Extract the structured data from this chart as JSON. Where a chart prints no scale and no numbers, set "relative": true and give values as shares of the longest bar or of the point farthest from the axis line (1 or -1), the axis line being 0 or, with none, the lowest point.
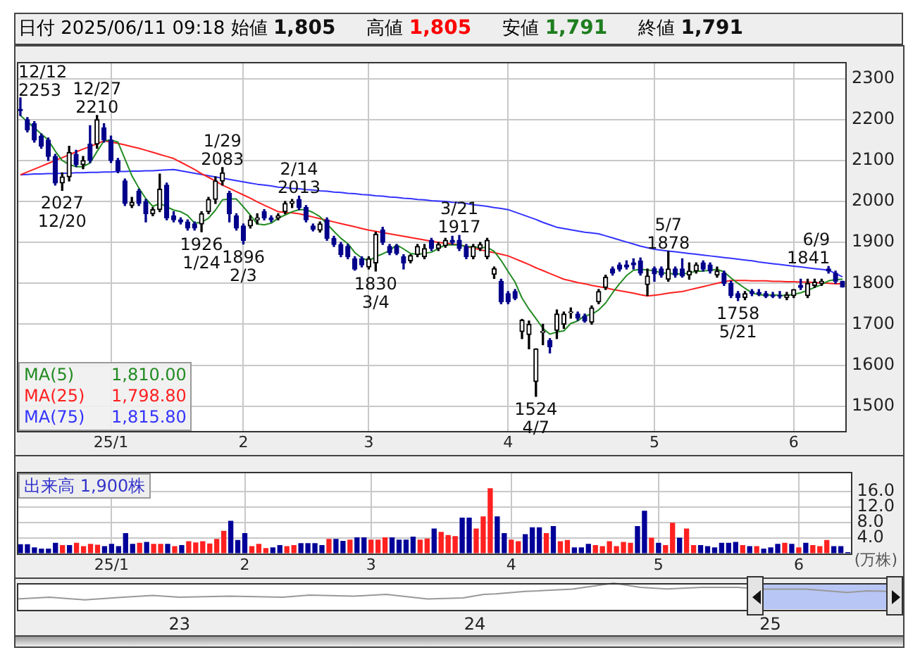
{
  "chart_data": [
    {
      "type": "candlestick",
      "title": "日付 2025/06/11 09:18",
      "annotations": [
        "始値 1,805",
        "高値 1,805",
        "安値 1,791",
        "終値 1,791",
        {
          "text": "12/27\n2210",
          "y": 2210
        },
        {
          "text": "2027\n12/20",
          "y": 2027
        },
        {
          "text": "1926\n1/24",
          "y": 1926
        },
        {
          "text": "1/29\n2083",
          "y": 2083
        },
        {
          "text": "1896\n2/3",
          "y": 1896
        },
        {
          "text": "2/14\n2013",
          "y": 2013
        },
        {
          "text": "1830\n3/4",
          "y": 1830
        },
        {
          "text": "3/21\n1917",
          "y": 1917
        },
        {
          "text": "1524\n4/7",
          "y": 1524
        },
        {
          "text": "5/7\n1878",
          "y": 1878
        },
        {
          "text": "1758\n5/21",
          "y": 1758
        },
        {
          "text": "6/9\n1841",
          "y": 1841
        },
        "12/12\n2253"
      ],
      "categories": [
        null,
        null,
        null,
        null,
        null,
        null,
        null,
        null,
        null,
        null,
        null,
        null,
        null,
        "25/1",
        null,
        null,
        null,
        null,
        null,
        null,
        null,
        null,
        null,
        null,
        null,
        null,
        null,
        null,
        null,
        null,
        null,
        null,
        "2",
        null,
        null,
        null,
        null,
        null,
        null,
        null,
        null,
        null,
        null,
        null,
        null,
        null,
        null,
        null,
        null,
        null,
        "3",
        null,
        null,
        null,
        null,
        null,
        null,
        null,
        null,
        null,
        null,
        null,
        null,
        null,
        null,
        null,
        null,
        null,
        null,
        null,
        "4",
        null,
        null,
        null,
        null,
        null,
        null,
        null,
        null,
        null,
        null,
        null,
        null,
        null,
        null,
        null,
        null,
        null,
        null,
        null,
        null,
        "5",
        null,
        null,
        null,
        null,
        null,
        null,
        null,
        null,
        null,
        null,
        null,
        null,
        null,
        null,
        null,
        null,
        null,
        null,
        null,
        "6",
        null,
        null,
        null,
        null,
        null,
        null,
        null
      ],
      "ohlc": [
        [
          2225,
          2253,
          2210,
          2222
        ],
        [
          2200,
          2205,
          2170,
          2175
        ],
        [
          2190,
          2195,
          2145,
          2150
        ],
        [
          2160,
          2165,
          2130,
          2135
        ],
        [
          2150,
          2155,
          2100,
          2110
        ],
        [
          2110,
          2115,
          2040,
          2045
        ],
        [
          2045,
          2070,
          2027,
          2060
        ],
        [
          2060,
          2135,
          2050,
          2120
        ],
        [
          2115,
          2125,
          2085,
          2090
        ],
        [
          2090,
          2110,
          2080,
          2100
        ],
        [
          2140,
          2185,
          2095,
          2100
        ],
        [
          2140,
          2210,
          2130,
          2200
        ],
        [
          2180,
          2190,
          2145,
          2150
        ],
        [
          2150,
          2160,
          2095,
          2100
        ],
        [
          2100,
          2105,
          2070,
          2075
        ],
        [
          2050,
          2055,
          1990,
          1995
        ],
        [
          1990,
          2010,
          1985,
          1998
        ],
        [
          2025,
          2030,
          1990,
          1995
        ],
        [
          2000,
          2005,
          1950,
          1970
        ],
        [
          1970,
          1985,
          1965,
          1980
        ],
        [
          1980,
          2067,
          1975,
          2030
        ],
        [
          2040,
          2045,
          1955,
          1960
        ],
        [
          1965,
          1975,
          1950,
          1955
        ],
        [
          1955,
          1960,
          1945,
          1950
        ],
        [
          1950,
          1955,
          1930,
          1935
        ],
        [
          1945,
          1950,
          1930,
          1935
        ],
        [
          1945,
          1975,
          1926,
          1970
        ],
        [
          1975,
          2010,
          1970,
          2005
        ],
        [
          2005,
          2060,
          1995,
          2050
        ],
        [
          2050,
          2083,
          2040,
          2070
        ],
        [
          2020,
          2025,
          1950,
          1970
        ],
        [
          1965,
          1970,
          1930,
          1935
        ],
        [
          1940,
          1945,
          1896,
          1905
        ],
        [
          1940,
          1965,
          1935,
          1955
        ],
        [
          1955,
          1970,
          1945,
          1960
        ],
        [
          1975,
          1980,
          1955,
          1960
        ],
        [
          1960,
          1965,
          1950,
          1955
        ],
        [
          1960,
          1970,
          1955,
          1965
        ],
        [
          1975,
          2000,
          1970,
          1995
        ],
        [
          1995,
          2005,
          1985,
          2000
        ],
        [
          2005,
          2013,
          1980,
          1985
        ],
        [
          1985,
          1990,
          1950,
          1955
        ],
        [
          1940,
          1945,
          1928,
          1932
        ],
        [
          1930,
          1950,
          1925,
          1945
        ],
        [
          1955,
          1960,
          1905,
          1910
        ],
        [
          1910,
          1915,
          1890,
          1895
        ],
        [
          1895,
          1900,
          1865,
          1870
        ],
        [
          1890,
          1895,
          1860,
          1865
        ],
        [
          1860,
          1865,
          1832,
          1835
        ],
        [
          1860,
          1865,
          1840,
          1845
        ],
        [
          1840,
          1865,
          1835,
          1860
        ],
        [
          1850,
          1925,
          1830,
          1920
        ],
        [
          1930,
          1937,
          1895,
          1900
        ],
        [
          1890,
          1895,
          1870,
          1875
        ],
        [
          1890,
          1895,
          1870,
          1873
        ],
        [
          1865,
          1870,
          1835,
          1850
        ],
        [
          1855,
          1870,
          1850,
          1868
        ],
        [
          1870,
          1895,
          1865,
          1890
        ],
        [
          1865,
          1895,
          1860,
          1885
        ],
        [
          1905,
          1910,
          1880,
          1885
        ],
        [
          1885,
          1900,
          1880,
          1895
        ],
        [
          1892,
          1910,
          1888,
          1905
        ],
        [
          1905,
          1915,
          1895,
          1900
        ],
        [
          1905,
          1917,
          1880,
          1885
        ],
        [
          1890,
          1895,
          1860,
          1865
        ],
        [
          1865,
          1895,
          1860,
          1890
        ],
        [
          1885,
          1900,
          1880,
          1895
        ],
        [
          1865,
          1910,
          1860,
          1905
        ],
        [
          1822,
          1840,
          1812,
          1836
        ],
        [
          1805,
          1810,
          1750,
          1755
        ],
        [
          1775,
          1780,
          1750,
          1755
        ],
        [
          1780,
          1785,
          1760,
          1764
        ],
        [
          1682,
          1712,
          1665,
          1710
        ],
        [
          1675,
          1708,
          1640,
          1700
        ],
        [
          1560,
          1640,
          1524,
          1640
        ],
        [
          1680,
          1700,
          1650,
          1683
        ],
        [
          1660,
          1665,
          1630,
          1645
        ],
        [
          1685,
          1735,
          1665,
          1725
        ],
        [
          1700,
          1730,
          1690,
          1725
        ],
        [
          1728,
          1740,
          1715,
          1730
        ],
        [
          1725,
          1730,
          1710,
          1715
        ],
        [
          1720,
          1725,
          1705,
          1708
        ],
        [
          1705,
          1745,
          1700,
          1740
        ],
        [
          1755,
          1785,
          1750,
          1780
        ],
        [
          1790,
          1820,
          1785,
          1815
        ],
        [
          1835,
          1840,
          1820,
          1825
        ],
        [
          1845,
          1850,
          1830,
          1835
        ],
        [
          1845,
          1855,
          1835,
          1840
        ],
        [
          1850,
          1860,
          1835,
          1845
        ],
        [
          1855,
          1862,
          1820,
          1825
        ],
        [
          1797,
          1835,
          1770,
          1818
        ],
        [
          1836,
          1840,
          1805,
          1823
        ],
        [
          1835,
          1840,
          1815,
          1820
        ],
        [
          1810,
          1878,
          1805,
          1835
        ],
        [
          1835,
          1840,
          1815,
          1820
        ],
        [
          1835,
          1860,
          1815,
          1818
        ],
        [
          1820,
          1850,
          1810,
          1830
        ],
        [
          1830,
          1850,
          1825,
          1845
        ],
        [
          1850,
          1855,
          1830,
          1835
        ],
        [
          1845,
          1850,
          1825,
          1830
        ],
        [
          1820,
          1840,
          1815,
          1830
        ],
        [
          1825,
          1830,
          1795,
          1800
        ],
        [
          1800,
          1805,
          1765,
          1770
        ],
        [
          1775,
          1780,
          1758,
          1765
        ],
        [
          1765,
          1780,
          1760,
          1775
        ],
        [
          1780,
          1785,
          1770,
          1775
        ],
        [
          1778,
          1785,
          1770,
          1774
        ],
        [
          1775,
          1780,
          1765,
          1768
        ],
        [
          1770,
          1778,
          1765,
          1768
        ],
        [
          1770,
          1780,
          1764,
          1768
        ],
        [
          1765,
          1778,
          1760,
          1772
        ],
        [
          1770,
          1785,
          1765,
          1785
        ],
        [
          1795,
          1810,
          1785,
          1790
        ],
        [
          1770,
          1810,
          1765,
          1800
        ],
        [
          1795,
          1810,
          1790,
          1803
        ],
        [
          1800,
          1810,
          1795,
          1805
        ],
        [
          1835,
          1841,
          1825,
          1830
        ],
        [
          1825,
          1830,
          1800,
          1805
        ],
        [
          1805,
          1805,
          1791,
          1791
        ]
      ],
      "series": [
        {
          "name": "MA(5) 1,810.00",
          "type": "line",
          "color": "#228b22",
          "values": [
            2210,
            2195,
            2180,
            2165,
            2150,
            2123,
            2100,
            2090,
            2085,
            2085,
            2094,
            2122,
            2148,
            2150,
            2145,
            2104,
            2063,
            2033,
            2007,
            1988,
            1995,
            1987,
            1979,
            1975,
            1966,
            1947,
            1949,
            1959,
            1979,
            2004,
            2006,
            2006,
            1987,
            1967,
            1945,
            1943,
            1947,
            1959,
            1967,
            1975,
            1980,
            1980,
            1973,
            1963,
            1945,
            1927,
            1910,
            1897,
            1875,
            1862,
            1855,
            1865,
            1872,
            1880,
            1894,
            1884,
            1873,
            1871,
            1873,
            1876,
            1885,
            1894,
            1894,
            1894,
            1890,
            1889,
            1887,
            1888,
            1878,
            1856,
            1829,
            1803,
            1764,
            1737,
            1714,
            1690,
            1676,
            1681,
            1684,
            1702,
            1708,
            1721,
            1724,
            1735,
            1752,
            1777,
            1799,
            1819,
            1832,
            1834,
            1833,
            1830,
            1826,
            1824,
            1823,
            1823,
            1825,
            1830,
            1830,
            1832,
            1834,
            1828,
            1813,
            1800,
            1788,
            1777,
            1772,
            1771,
            1772,
            1771,
            1770,
            1773,
            1777,
            1783,
            1790,
            1797,
            1806,
            1809,
            1810
          ]
        },
        {
          "name": "MA(25) 1,798.80",
          "type": "line",
          "color": "#ff2020",
          "values": [
            2065,
            2072,
            2079,
            2086,
            2093,
            2100,
            2107,
            2114,
            2121,
            2128,
            2134,
            2141,
            2148,
            2145,
            2142,
            2138,
            2134,
            2130,
            2125,
            2120,
            2115,
            2110,
            2105,
            2096,
            2087,
            2078,
            2068,
            2059,
            2050,
            2040,
            2032,
            2024,
            2016,
            2008,
            1999,
            1991,
            1983,
            1975,
            1973,
            1972,
            1970,
            1966,
            1962,
            1958,
            1954,
            1950,
            1946,
            1942,
            1938,
            1934,
            1930,
            1927,
            1924,
            1921,
            1918,
            1915,
            1912,
            1909,
            1906,
            1903,
            1900,
            1898,
            1896,
            1894,
            1890,
            1886,
            1882,
            1878,
            1875,
            1871,
            1867,
            1860,
            1853,
            1846,
            1838,
            1831,
            1824,
            1817,
            1810,
            1806,
            1802,
            1799,
            1795,
            1792,
            1789,
            1785,
            1782,
            1779,
            1776,
            1772,
            1769,
            1771,
            1773,
            1776,
            1778,
            1780,
            1784,
            1788,
            1792,
            1796,
            1800,
            1804,
            1807,
            1807,
            1807,
            1806,
            1806,
            1806,
            1805,
            1805,
            1804,
            1804,
            1803,
            1803,
            1802,
            1801,
            1800,
            1799,
            1798.8
          ]
        },
        {
          "name": "MA(75) 1,815.80",
          "type": "line",
          "color": "#3333ff",
          "values": [
            2065,
            2066,
            2067,
            2067,
            2068,
            2068,
            2069,
            2069,
            2070,
            2070,
            2071,
            2071,
            2072,
            2072,
            2073,
            2073,
            2074,
            2074,
            2075,
            2075,
            2076,
            2077,
            2078,
            2075,
            2072,
            2069,
            2066,
            2063,
            2060,
            2057,
            2054,
            2051,
            2048,
            2045,
            2042,
            2040,
            2038,
            2035,
            2034,
            2032,
            2031,
            2029,
            2028,
            2026,
            2025,
            2023,
            2022,
            2020,
            2019,
            2017,
            2016,
            2014,
            2013,
            2011,
            2010,
            2008,
            2007,
            2005,
            2004,
            2002,
            2001,
            2000,
            1998,
            1997,
            1995,
            1992,
            1990,
            1988,
            1985,
            1983,
            1980,
            1974,
            1968,
            1962,
            1956,
            1949,
            1943,
            1937,
            1934,
            1931,
            1928,
            1925,
            1923,
            1921,
            1916,
            1911,
            1906,
            1901,
            1896,
            1891,
            1887,
            1883,
            1881,
            1879,
            1877,
            1875,
            1873,
            1871,
            1869,
            1867,
            1865,
            1863,
            1861,
            1859,
            1857,
            1855,
            1852,
            1850,
            1848,
            1846,
            1844,
            1842,
            1840,
            1838,
            1836,
            1834,
            1832,
            1824,
            1815.8
          ]
        }
      ],
      "ylim": [
        1440,
        2340
      ],
      "yticks": [
        1500,
        1600,
        1700,
        1800,
        1900,
        2000,
        2100,
        2200,
        2300
      ],
      "grid": true
    },
    {
      "type": "bar",
      "title": "出来高 1,900株",
      "ylabel": "(万株)",
      "categories": [
        null,
        null,
        null,
        null,
        null,
        null,
        null,
        null,
        null,
        null,
        null,
        null,
        null,
        "25/1",
        null,
        null,
        null,
        null,
        null,
        null,
        null,
        null,
        null,
        null,
        null,
        null,
        null,
        null,
        null,
        null,
        null,
        null,
        "2",
        null,
        null,
        null,
        null,
        null,
        null,
        null,
        null,
        null,
        null,
        null,
        null,
        null,
        null,
        null,
        null,
        null,
        "3",
        null,
        null,
        null,
        null,
        null,
        null,
        null,
        null,
        null,
        null,
        null,
        null,
        null,
        null,
        null,
        null,
        null,
        null,
        null,
        "4",
        null,
        null,
        null,
        null,
        null,
        null,
        null,
        null,
        null,
        null,
        null,
        null,
        null,
        null,
        null,
        null,
        null,
        null,
        null,
        null,
        "5",
        null,
        null,
        null,
        null,
        null,
        null,
        null,
        null,
        null,
        null,
        null,
        null,
        null,
        null,
        null,
        null,
        null,
        null,
        null,
        "6",
        null,
        null,
        null,
        null,
        null,
        null,
        null
      ],
      "values": [
        2.2,
        2.2,
        1.4,
        1.1,
        1.1,
        2.6,
        2.0,
        2.0,
        2.6,
        1.7,
        2.3,
        2.1,
        1.7,
        2.3,
        1.7,
        5.1,
        2.3,
        2.6,
        2.8,
        2.3,
        2.3,
        2.3,
        1.7,
        2.0,
        3.0,
        2.7,
        3.0,
        2.4,
        3.6,
        5.7,
        8.3,
        3.3,
        5.1,
        1.7,
        2.3,
        1.2,
        1.4,
        2.0,
        1.7,
        2.0,
        2.5,
        2.5,
        2.5,
        2.0,
        3.6,
        3.6,
        3.1,
        3.4,
        4.0,
        4.0,
        3.4,
        3.4,
        4.0,
        4.0,
        3.4,
        3.4,
        4.2,
        3.4,
        3.7,
        6.3,
        5.4,
        4.6,
        4.3,
        9.1,
        9.1,
        6.3,
        9.4,
        16.7,
        9.4,
        5.1,
        3.4,
        3.0,
        4.8,
        6.6,
        6.6,
        5.1,
        6.9,
        3.0,
        3.3,
        1.4,
        1.4,
        2.3,
        2.0,
        1.7,
        3.0,
        1.7,
        2.8,
        2.6,
        6.9,
        10.9,
        3.9,
        2.6,
        2.0,
        7.8,
        3.9,
        6.3,
        2.0,
        2.0,
        1.7,
        1.4,
        2.6,
        2.6,
        2.8,
        2.0,
        1.7,
        1.7,
        1.1,
        1.4,
        2.3,
        2.6,
        2.3,
        1.4,
        2.6,
        2.0,
        1.7,
        3.3,
        1.7,
        1.7,
        0.19
      ],
      "colors": [
        "#000099",
        "#000099",
        "#000099",
        "#000099",
        "#000099",
        "#000099",
        "#ff2020",
        "#000099",
        "#ff2020",
        "#ff2020",
        "#ff2020",
        "#ff2020",
        "#000099",
        "#000099",
        "#000099",
        "#000099",
        "#000099",
        "#ff2020",
        "#000099",
        "#ff2020",
        "#ff2020",
        "#000099",
        "#ff2020",
        "#000099",
        "#ff2020",
        "#ff2020",
        "#ff2020",
        "#ff2020",
        "#ff2020",
        "#ff2020",
        "#000099",
        "#000099",
        "#000099",
        "#ff2020",
        "#ff2020",
        "#ff2020",
        "#000099",
        "#000099",
        "#ff2020",
        "#ff2020",
        "#000099",
        "#000099",
        "#000099",
        "#000099",
        "#ff2020",
        "#000099",
        "#000099",
        "#ff2020",
        "#000099",
        "#000099",
        "#ff2020",
        "#ff2020",
        "#ff2020",
        "#000099",
        "#000099",
        "#000099",
        "#000099",
        "#ff2020",
        "#ff2020",
        "#000099",
        "#ff2020",
        "#ff2020",
        "#ff2020",
        "#000099",
        "#000099",
        "#ff2020",
        "#ff2020",
        "#ff2020",
        "#000099",
        "#000099",
        "#ff2020",
        "#ff2020",
        "#000099",
        "#000099",
        "#000099",
        "#ff2020",
        "#000099",
        "#ff2020",
        "#ff2020",
        "#000099",
        "#000099",
        "#000099",
        "#ff2020",
        "#ff2020",
        "#ff2020",
        "#ff2020",
        "#ff2020",
        "#ff2020",
        "#000099",
        "#000099",
        "#ff2020",
        "#000099",
        "#ff2020",
        "#ff2020",
        "#000099",
        "#ff2020",
        "#ff2020",
        "#000099",
        "#000099",
        "#000099",
        "#000099",
        "#000099",
        "#000099",
        "#ff2020",
        "#000099",
        "#ff2020",
        "#000099",
        "#000099",
        "#000099",
        "#ff2020",
        "#000099",
        "#ff2020",
        "#000099",
        "#ff2020",
        "#ff2020",
        "#ff2020",
        "#000099",
        "#000099",
        "#000099"
      ],
      "ylim": [
        0,
        21
      ],
      "yticks": [
        {
          "value": 4,
          "label": "4.0"
        },
        {
          "value": 8,
          "label": "8.0"
        },
        {
          "value": 12,
          "label": "12.0"
        },
        {
          "value": 16,
          "label": "16.0"
        }
      ],
      "grid": true
    },
    {
      "type": "line",
      "relative": true,
      "color": "#999999",
      "x": [
        2022.45,
        2022.56,
        2022.68,
        2022.81,
        2022.91,
        2023.0,
        2023.17,
        2023.35,
        2023.44,
        2023.59,
        2023.7,
        2023.84,
        2023.96,
        2024.03,
        2024.07,
        2024.17,
        2024.33,
        2024.47,
        2024.56,
        2024.65,
        2024.77,
        2024.89,
        2024.98,
        2025.12,
        2025.26,
        2025.33,
        2025.4
      ],
      "values": [
        0.39,
        0.46,
        0.36,
        0.46,
        0.53,
        0.46,
        0.5,
        0.46,
        0.54,
        0.5,
        0.57,
        0.39,
        0.43,
        0.57,
        0.59,
        0.68,
        0.77,
        1,
        0.84,
        0.78,
        0.84,
        0.84,
        0.77,
        0.77,
        0.64,
        0.7,
        0.68
      ],
      "xlim": [
        2022.45,
        2025.44
      ],
      "xticks": [
        {
          "value": 2023,
          "label": "23"
        },
        {
          "value": 2024,
          "label": "24"
        },
        {
          "value": 2025,
          "label": "25"
        }
      ],
      "bands": [
        {
          "axis": "x",
          "from": 2024.95,
          "to": 2025.44,
          "color": "#b8c6f5"
        }
      ],
      "tick_labels": "x"
    }
  ]
}
